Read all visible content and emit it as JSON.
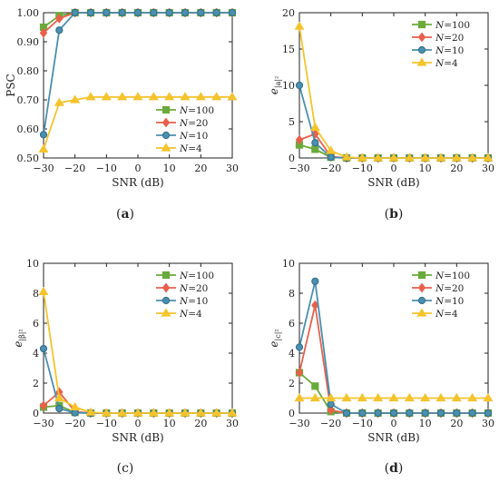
{
  "chart_data": [
    {
      "type": "line",
      "panel_label": "(a)",
      "panel_label_bold": "a",
      "xlabel": "SNR (dB)",
      "ylabel": "PSC",
      "xlim": [
        -30,
        30
      ],
      "ylim": [
        0.5,
        1.0
      ],
      "xticks": [
        -30,
        -20,
        -10,
        0,
        10,
        20,
        30
      ],
      "xtick_labels": [
        "−30",
        "−20",
        "−10",
        "0",
        "10",
        "20",
        "30"
      ],
      "yticks": [
        0.5,
        0.6,
        0.7,
        0.8,
        0.9,
        1.0
      ],
      "ytick_labels": [
        "0.50",
        "0.60",
        "0.70",
        "0.80",
        "0.90",
        "1.00"
      ],
      "legend_position": "lower-right",
      "x": [
        -30,
        -25,
        -20,
        -15,
        -10,
        -5,
        0,
        5,
        10,
        15,
        20,
        25,
        30
      ],
      "series": [
        {
          "name": "N=100",
          "marker": "square",
          "color": "#6aaa3a",
          "values": [
            0.95,
            0.99,
            1.0,
            1.0,
            1.0,
            1.0,
            1.0,
            1.0,
            1.0,
            1.0,
            1.0,
            1.0,
            1.0
          ]
        },
        {
          "name": "N=20",
          "marker": "diamond",
          "color": "#e8604c",
          "values": [
            0.93,
            0.98,
            1.0,
            1.0,
            1.0,
            1.0,
            1.0,
            1.0,
            1.0,
            1.0,
            1.0,
            1.0,
            1.0
          ]
        },
        {
          "name": "N=10",
          "marker": "circle",
          "color": "#4a8fb0",
          "values": [
            0.58,
            0.94,
            1.0,
            1.0,
            1.0,
            1.0,
            1.0,
            1.0,
            1.0,
            1.0,
            1.0,
            1.0,
            1.0
          ]
        },
        {
          "name": "N=4",
          "marker": "triangle",
          "color": "#f5c32c",
          "values": [
            0.53,
            0.69,
            0.7,
            0.71,
            0.71,
            0.71,
            0.71,
            0.71,
            0.71,
            0.71,
            0.71,
            0.71,
            0.71
          ]
        }
      ]
    },
    {
      "type": "line",
      "panel_label": "(b)",
      "panel_label_bold": "b",
      "xlabel": "SNR (dB)",
      "ylabel_base": "e",
      "ylabel_sub": "|a|²",
      "xlim": [
        -30,
        30
      ],
      "ylim": [
        0,
        20
      ],
      "xticks": [
        -30,
        -20,
        -10,
        0,
        10,
        20,
        30
      ],
      "xtick_labels": [
        "−30",
        "−20",
        "−10",
        "0",
        "10",
        "20",
        "30"
      ],
      "yticks": [
        0,
        5,
        10,
        15,
        20
      ],
      "ytick_labels": [
        "0",
        "5",
        "10",
        "15",
        "20"
      ],
      "legend_position": "upper-right",
      "x": [
        -30,
        -25,
        -20,
        -15,
        -10,
        -5,
        0,
        5,
        10,
        15,
        20,
        25,
        30
      ],
      "series": [
        {
          "name": "N=100",
          "marker": "square",
          "color": "#6aaa3a",
          "values": [
            1.8,
            1.2,
            0.1,
            0,
            0,
            0,
            0,
            0,
            0,
            0,
            0,
            0,
            0
          ]
        },
        {
          "name": "N=20",
          "marker": "diamond",
          "color": "#e8604c",
          "values": [
            2.5,
            3.3,
            0.2,
            0,
            0,
            0,
            0,
            0,
            0,
            0,
            0,
            0,
            0
          ]
        },
        {
          "name": "N=10",
          "marker": "circle",
          "color": "#4a8fb0",
          "values": [
            10.0,
            2.1,
            0.1,
            0,
            0,
            0,
            0,
            0,
            0,
            0,
            0,
            0,
            0
          ]
        },
        {
          "name": "N=4",
          "marker": "triangle",
          "color": "#f5c32c",
          "values": [
            18.1,
            4.2,
            1.0,
            0.1,
            0,
            0,
            0,
            0,
            0,
            0,
            0,
            0,
            0
          ]
        }
      ]
    },
    {
      "type": "line",
      "panel_label": "(c)",
      "panel_label_bold": "",
      "xlabel": "SNR (dB)",
      "ylabel_base": "e",
      "ylabel_sub": "|β|²",
      "xlim": [
        -30,
        30
      ],
      "ylim": [
        0,
        10
      ],
      "xticks": [
        -30,
        -20,
        -10,
        0,
        10,
        20,
        30
      ],
      "xtick_labels": [
        "−30",
        "−20",
        "−10",
        "0",
        "10",
        "20",
        "30"
      ],
      "yticks": [
        0,
        2,
        4,
        6,
        8,
        10
      ],
      "ytick_labels": [
        "0",
        "2",
        "4",
        "6",
        "8",
        "10"
      ],
      "legend_position": "upper-right",
      "x": [
        -30,
        -25,
        -20,
        -15,
        -10,
        -5,
        0,
        5,
        10,
        15,
        20,
        25,
        30
      ],
      "series": [
        {
          "name": "N=100",
          "marker": "square",
          "color": "#6aaa3a",
          "values": [
            0.4,
            0.5,
            0.05,
            0,
            0,
            0,
            0,
            0,
            0,
            0,
            0,
            0,
            0
          ]
        },
        {
          "name": "N=20",
          "marker": "diamond",
          "color": "#e8604c",
          "values": [
            0.5,
            1.4,
            0.1,
            0,
            0,
            0,
            0,
            0,
            0,
            0,
            0,
            0,
            0
          ]
        },
        {
          "name": "N=10",
          "marker": "circle",
          "color": "#4a8fb0",
          "values": [
            4.3,
            0.3,
            0.02,
            0,
            0,
            0,
            0,
            0,
            0,
            0,
            0,
            0,
            0
          ]
        },
        {
          "name": "N=4",
          "marker": "triangle",
          "color": "#f5c32c",
          "values": [
            8.1,
            1.0,
            0.4,
            0.05,
            0,
            0,
            0,
            0,
            0,
            0,
            0,
            0,
            0
          ]
        }
      ]
    },
    {
      "type": "line",
      "panel_label": "(d)",
      "panel_label_bold": "d",
      "xlabel": "SNR (dB)",
      "ylabel_base": "e",
      "ylabel_sub": "|c|²",
      "xlim": [
        -30,
        30
      ],
      "ylim": [
        0,
        10
      ],
      "xticks": [
        -30,
        -20,
        -10,
        0,
        10,
        20,
        30
      ],
      "xtick_labels": [
        "−30",
        "−20",
        "−10",
        "0",
        "10",
        "20",
        "30"
      ],
      "yticks": [
        0,
        2,
        4,
        6,
        8,
        10
      ],
      "ytick_labels": [
        "0",
        "2",
        "4",
        "6",
        "8",
        "10"
      ],
      "legend_position": "upper-right",
      "x": [
        -30,
        -25,
        -20,
        -15,
        -10,
        -5,
        0,
        5,
        10,
        15,
        20,
        25,
        30
      ],
      "series": [
        {
          "name": "N=100",
          "marker": "square",
          "color": "#6aaa3a",
          "values": [
            2.7,
            1.8,
            0.1,
            0,
            0,
            0,
            0,
            0,
            0,
            0,
            0,
            0,
            0
          ]
        },
        {
          "name": "N=20",
          "marker": "diamond",
          "color": "#e8604c",
          "values": [
            2.7,
            7.2,
            0.2,
            0,
            0,
            0,
            0,
            0,
            0,
            0,
            0,
            0,
            0
          ]
        },
        {
          "name": "N=10",
          "marker": "circle",
          "color": "#4a8fb0",
          "values": [
            4.4,
            8.8,
            0.6,
            0,
            0,
            0,
            0,
            0,
            0,
            0,
            0,
            0,
            0
          ]
        },
        {
          "name": "N=4",
          "marker": "triangle",
          "color": "#f5c32c",
          "values": [
            1.0,
            1.0,
            1.0,
            1.0,
            1.0,
            1.0,
            1.0,
            1.0,
            1.0,
            1.0,
            1.0,
            1.0,
            1.0
          ]
        }
      ]
    }
  ]
}
